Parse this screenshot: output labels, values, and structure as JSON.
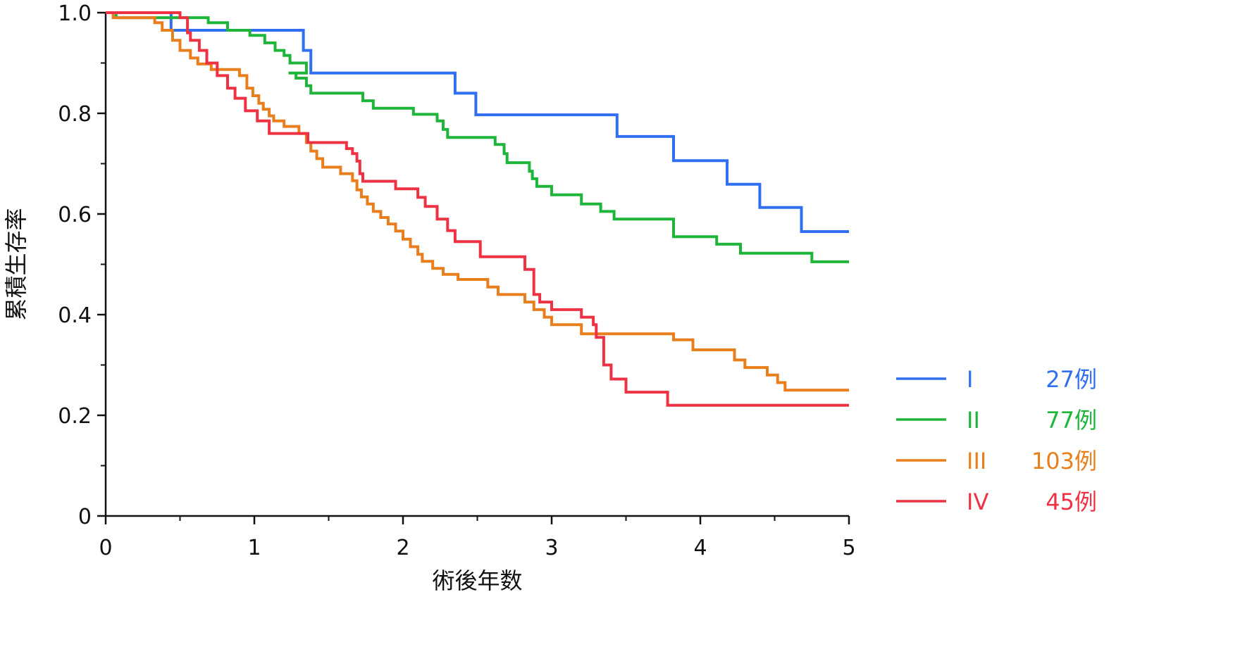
{
  "chart_data": {
    "type": "line",
    "step": true,
    "xlabel": "術後年数",
    "ylabel": "累積生存率",
    "xlim": [
      0,
      5
    ],
    "ylim": [
      0,
      1.0
    ],
    "x_ticks": [
      "0",
      "1",
      "2",
      "3",
      "4",
      "5"
    ],
    "y_ticks": [
      "0",
      "0.2",
      "0.4",
      "0.6",
      "0.8",
      "1.0"
    ],
    "grid": false,
    "legend_position": "right",
    "series": [
      {
        "name": "I",
        "count_label": "27例",
        "color": "#2f6ff0",
        "points": [
          [
            0,
            1.0
          ],
          [
            0.44,
            0.965
          ],
          [
            1.33,
            0.925
          ],
          [
            1.38,
            0.88
          ],
          [
            2.35,
            0.84
          ],
          [
            2.49,
            0.797
          ],
          [
            3.44,
            0.754
          ],
          [
            3.82,
            0.706
          ],
          [
            4.18,
            0.659
          ],
          [
            4.4,
            0.613
          ],
          [
            4.68,
            0.565
          ],
          [
            5.0,
            0.565
          ]
        ]
      },
      {
        "name": "II",
        "count_label": "77例",
        "color": "#1fb53a",
        "points": [
          [
            0,
            1.0
          ],
          [
            0.07,
            0.99
          ],
          [
            0.69,
            0.98
          ],
          [
            0.82,
            0.965
          ],
          [
            0.97,
            0.955
          ],
          [
            1.07,
            0.94
          ],
          [
            1.14,
            0.925
          ],
          [
            1.2,
            0.915
          ],
          [
            1.24,
            0.9
          ],
          [
            1.35,
            0.88
          ],
          [
            1.23,
            0.88
          ],
          [
            1.28,
            0.87
          ],
          [
            1.35,
            0.855
          ],
          [
            1.38,
            0.84
          ],
          [
            1.73,
            0.825
          ],
          [
            1.8,
            0.81
          ],
          [
            2.07,
            0.798
          ],
          [
            2.23,
            0.785
          ],
          [
            2.27,
            0.768
          ],
          [
            2.3,
            0.752
          ],
          [
            2.62,
            0.738
          ],
          [
            2.68,
            0.72
          ],
          [
            2.7,
            0.702
          ],
          [
            2.85,
            0.685
          ],
          [
            2.87,
            0.67
          ],
          [
            2.9,
            0.655
          ],
          [
            3.0,
            0.638
          ],
          [
            3.2,
            0.62
          ],
          [
            3.33,
            0.605
          ],
          [
            3.42,
            0.59
          ],
          [
            3.82,
            0.555
          ],
          [
            4.11,
            0.54
          ],
          [
            4.27,
            0.522
          ],
          [
            4.75,
            0.505
          ],
          [
            5.0,
            0.505
          ]
        ]
      },
      {
        "name": "III",
        "count_label": "103例",
        "color": "#e97e1d",
        "points": [
          [
            0,
            1.0
          ],
          [
            0.05,
            0.99
          ],
          [
            0.33,
            0.98
          ],
          [
            0.38,
            0.965
          ],
          [
            0.45,
            0.945
          ],
          [
            0.5,
            0.925
          ],
          [
            0.57,
            0.91
          ],
          [
            0.62,
            0.898
          ],
          [
            0.71,
            0.887
          ],
          [
            0.9,
            0.875
          ],
          [
            0.95,
            0.85
          ],
          [
            0.99,
            0.835
          ],
          [
            1.03,
            0.82
          ],
          [
            1.06,
            0.808
          ],
          [
            1.1,
            0.795
          ],
          [
            1.13,
            0.785
          ],
          [
            1.2,
            0.774
          ],
          [
            1.3,
            0.76
          ],
          [
            1.35,
            0.742
          ],
          [
            1.38,
            0.725
          ],
          [
            1.42,
            0.71
          ],
          [
            1.46,
            0.693
          ],
          [
            1.58,
            0.68
          ],
          [
            1.66,
            0.666
          ],
          [
            1.69,
            0.648
          ],
          [
            1.72,
            0.634
          ],
          [
            1.76,
            0.62
          ],
          [
            1.8,
            0.605
          ],
          [
            1.85,
            0.593
          ],
          [
            1.9,
            0.58
          ],
          [
            1.95,
            0.566
          ],
          [
            2.0,
            0.55
          ],
          [
            2.05,
            0.535
          ],
          [
            2.1,
            0.52
          ],
          [
            2.13,
            0.506
          ],
          [
            2.2,
            0.492
          ],
          [
            2.27,
            0.48
          ],
          [
            2.37,
            0.47
          ],
          [
            2.57,
            0.455
          ],
          [
            2.64,
            0.44
          ],
          [
            2.82,
            0.425
          ],
          [
            2.88,
            0.41
          ],
          [
            2.95,
            0.395
          ],
          [
            3.0,
            0.38
          ],
          [
            3.2,
            0.362
          ],
          [
            3.82,
            0.35
          ],
          [
            3.95,
            0.33
          ],
          [
            4.23,
            0.31
          ],
          [
            4.3,
            0.295
          ],
          [
            4.45,
            0.28
          ],
          [
            4.52,
            0.265
          ],
          [
            4.57,
            0.25
          ],
          [
            5.0,
            0.25
          ]
        ]
      },
      {
        "name": "IV",
        "count_label": "45例",
        "color": "#ee3244",
        "points": [
          [
            0,
            1.0
          ],
          [
            0.5,
            0.99
          ],
          [
            0.55,
            0.96
          ],
          [
            0.57,
            0.945
          ],
          [
            0.63,
            0.925
          ],
          [
            0.68,
            0.9
          ],
          [
            0.75,
            0.875
          ],
          [
            0.82,
            0.85
          ],
          [
            0.87,
            0.83
          ],
          [
            0.94,
            0.805
          ],
          [
            1.02,
            0.785
          ],
          [
            1.1,
            0.76
          ],
          [
            1.36,
            0.742
          ],
          [
            1.62,
            0.73
          ],
          [
            1.66,
            0.72
          ],
          [
            1.69,
            0.705
          ],
          [
            1.71,
            0.68
          ],
          [
            1.73,
            0.665
          ],
          [
            1.95,
            0.65
          ],
          [
            2.1,
            0.633
          ],
          [
            2.15,
            0.615
          ],
          [
            2.23,
            0.59
          ],
          [
            2.3,
            0.567
          ],
          [
            2.35,
            0.545
          ],
          [
            2.52,
            0.515
          ],
          [
            2.82,
            0.49
          ],
          [
            2.88,
            0.44
          ],
          [
            2.92,
            0.425
          ],
          [
            3.0,
            0.41
          ],
          [
            3.2,
            0.395
          ],
          [
            3.28,
            0.38
          ],
          [
            3.3,
            0.355
          ],
          [
            3.35,
            0.3
          ],
          [
            3.4,
            0.272
          ],
          [
            3.5,
            0.246
          ],
          [
            3.78,
            0.22
          ],
          [
            5.0,
            0.22
          ]
        ]
      }
    ]
  }
}
